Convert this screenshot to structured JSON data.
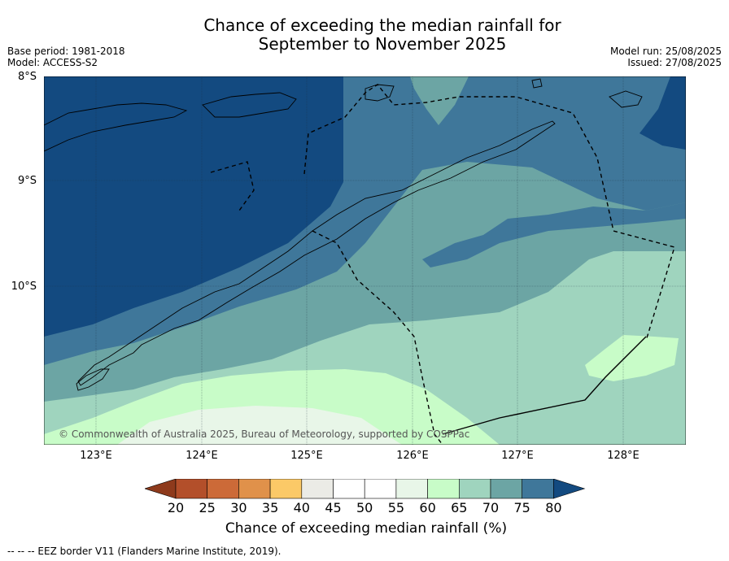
{
  "title_line1": "Chance of exceeding the median rainfall for",
  "title_line2": "September to November 2025",
  "base_period": "Base period: 1981-2018",
  "model": "Model: ACCESS-S2",
  "model_run": "Model run: 25/08/2025",
  "issued": "Issued: 27/08/2025",
  "lat_labels": [
    "8°S",
    "9°S",
    "10°S"
  ],
  "lon_labels": [
    "123°E",
    "124°E",
    "125°E",
    "126°E",
    "127°E",
    "128°E"
  ],
  "copyright": "© Commonwealth of Australia 2025, Bureau of Meteorology, supported by COSPPac",
  "colorbar": {
    "label": "Chance of exceeding median rainfall (%)",
    "ticks": [
      "20",
      "25",
      "30",
      "35",
      "40",
      "45",
      "50",
      "55",
      "60",
      "65",
      "70",
      "75",
      "80"
    ],
    "colors": [
      "#8e3a1c",
      "#b34f2a",
      "#cc6a38",
      "#e0914a",
      "#fbc967",
      "#ebebe6",
      "#ffffff",
      "#ffffff",
      "#e8f6e8",
      "#c8fcc8",
      "#9fd4be",
      "#6ca5a4",
      "#3f779a",
      "#134a80"
    ]
  },
  "footnote": "--  --  -- EEZ border V11 (Flanders Marine Institute, 2019).",
  "zone_colors": {
    "p75_80": "#134a80",
    "p70_75": "#3f779a",
    "p65_70": "#6ca5a4",
    "p60_65": "#9fd4be",
    "p55_60": "#c8fcc8",
    "p50_55": "#e8f6e8"
  }
}
